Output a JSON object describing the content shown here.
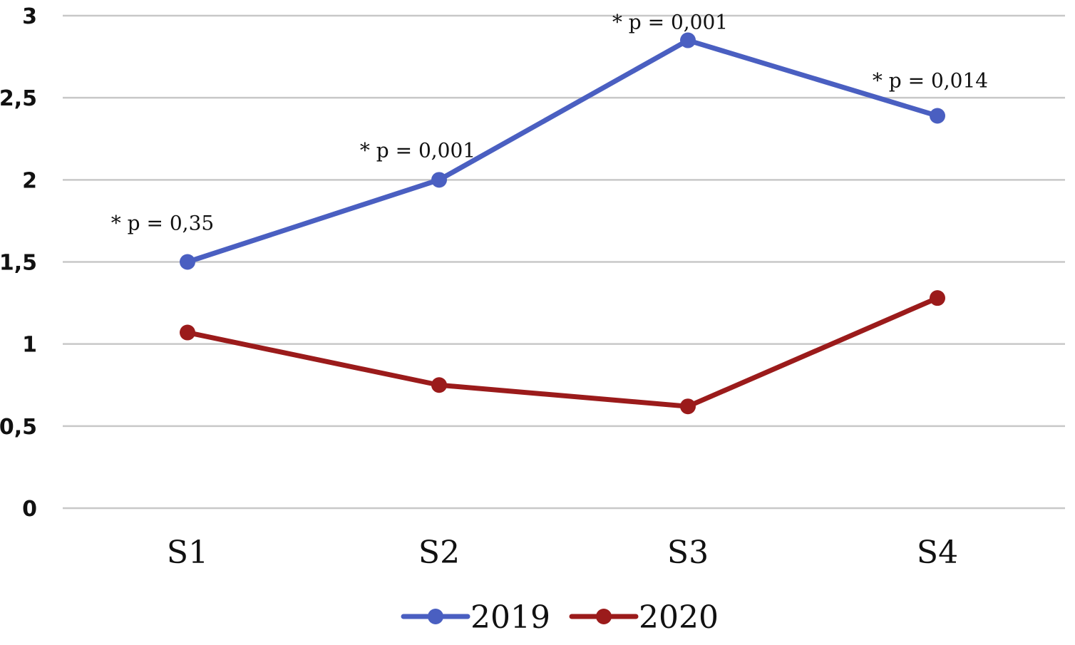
{
  "chart_data": {
    "type": "line",
    "categories": [
      "S1",
      "S2",
      "S3",
      "S4"
    ],
    "series": [
      {
        "name": "2019",
        "values": [
          1.5,
          2.0,
          2.85,
          2.39
        ],
        "color": "#4a5fc1"
      },
      {
        "name": "2020",
        "values": [
          1.07,
          0.75,
          0.62,
          1.28
        ],
        "color": "#9b1b1b"
      }
    ],
    "ylim": [
      0,
      3
    ],
    "yticks": [
      0,
      0.5,
      1,
      1.5,
      2,
      2.5,
      3
    ],
    "ytick_labels": [
      "0",
      "0,5",
      "1",
      "1,5",
      "2",
      "2,5",
      "3"
    ],
    "annotations": [
      "* p = 0,35",
      "* p = 0,001",
      "* p = 0,001",
      "* p = 0,014"
    ],
    "grid": true,
    "legend": "bottom-center",
    "title": "",
    "xlabel": "",
    "ylabel": ""
  }
}
